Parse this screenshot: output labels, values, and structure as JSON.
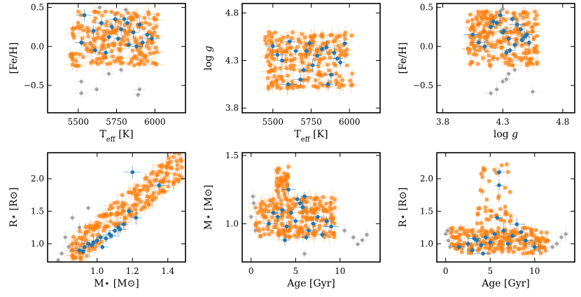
{
  "colors": {
    "orange": "#ff7f0e",
    "blue": "#1f77b4",
    "gray": "#9a9a9a"
  },
  "chart_data": [
    {
      "type": "scatter",
      "xlabel": "Teff [K]",
      "ylabel": "[Fe/H]",
      "xlim": [
        5300,
        6200
      ],
      "ylim": [
        -0.85,
        0.55
      ],
      "xticks": [
        5500,
        5750,
        6000
      ],
      "xtick_labels": [
        "5500",
        "5750",
        "6000"
      ],
      "yticks": [
        -0.5,
        0.0,
        0.5
      ],
      "ytick_labels": [
        "−0.5",
        "0.0",
        "0.5"
      ],
      "series": [
        {
          "name": "background",
          "color": "gray",
          "x": [
            5520,
            5620,
            5700,
            5780,
            5890,
            5520,
            5810,
            5640,
            5900,
            5450
          ],
          "y": [
            -0.6,
            -0.55,
            -0.35,
            -0.3,
            -0.62,
            -0.45,
            0.47,
            0.5,
            -0.55,
            -0.1
          ]
        },
        {
          "name": "sample",
          "color": "orange",
          "count": 220,
          "seed": 11,
          "x_range": [
            5450,
            6020
          ],
          "y_range": [
            -0.25,
            0.45
          ],
          "jitter": [
            25,
            0.04
          ]
        },
        {
          "name": "highlight",
          "color": "blue",
          "x": [
            5520,
            5600,
            5650,
            5700,
            5720,
            5760,
            5800,
            5830,
            5860,
            5900,
            5920,
            5950,
            5540,
            5680,
            5740,
            5780,
            5880,
            5980,
            5610,
            5820
          ],
          "y": [
            0.05,
            0.2,
            0.3,
            0.12,
            0.25,
            0.1,
            0.35,
            0.02,
            0.18,
            0.28,
            0.05,
            0.15,
            0.4,
            -0.08,
            0.35,
            0.22,
            0.0,
            0.1,
            -0.05,
            0.3
          ]
        }
      ]
    },
    {
      "type": "scatter",
      "xlabel": "Teff [K]",
      "ylabel": "log g",
      "xlim": [
        5300,
        6200
      ],
      "ylim": [
        3.75,
        4.9
      ],
      "xticks": [
        5500,
        5750,
        6000
      ],
      "xtick_labels": [
        "5500",
        "5750",
        "6000"
      ],
      "yticks": [
        3.8,
        4.3,
        4.8
      ],
      "ytick_labels": [
        "3.8",
        "4.3",
        "4.8"
      ],
      "series": [
        {
          "name": "sample",
          "color": "orange",
          "count": 220,
          "seed": 23,
          "x_range": [
            5450,
            6020
          ],
          "y_range": [
            4.0,
            4.6
          ],
          "jitter": [
            25,
            0.04
          ]
        },
        {
          "name": "highlight",
          "color": "blue",
          "x": [
            5500,
            5560,
            5610,
            5650,
            5700,
            5740,
            5790,
            5820,
            5860,
            5900,
            5940,
            5970,
            5530,
            5680,
            5760,
            5850,
            5920,
            5600,
            5880,
            5720
          ],
          "y": [
            4.45,
            4.3,
            4.5,
            4.4,
            4.2,
            4.48,
            4.35,
            4.42,
            4.05,
            4.38,
            4.28,
            4.48,
            4.36,
            4.1,
            4.25,
            4.44,
            4.32,
            4.05,
            4.15,
            4.4
          ]
        }
      ]
    },
    {
      "type": "scatter",
      "xlabel": "log g",
      "ylabel": "[Fe/H]",
      "xlim": [
        3.75,
        4.9
      ],
      "ylim": [
        -0.85,
        0.55
      ],
      "xticks": [
        3.8,
        4.3,
        4.8
      ],
      "xtick_labels": [
        "3.8",
        "4.3",
        "4.8"
      ],
      "yticks": [
        -0.5,
        0.0,
        0.5
      ],
      "ytick_labels": [
        "−0.5",
        "0.0",
        "0.5"
      ],
      "series": [
        {
          "name": "background",
          "color": "gray",
          "x": [
            4.2,
            4.25,
            4.3,
            4.35,
            4.4,
            4.3,
            4.15,
            4.55,
            4.33,
            4.28
          ],
          "y": [
            -0.6,
            -0.55,
            -0.45,
            -0.35,
            -0.3,
            0.48,
            0.4,
            -0.58,
            -0.42,
            0.45
          ]
        },
        {
          "name": "sample",
          "color": "orange",
          "count": 220,
          "seed": 37,
          "x_range": [
            4.0,
            4.6
          ],
          "y_range": [
            -0.25,
            0.45
          ],
          "jitter": [
            0.03,
            0.04
          ]
        },
        {
          "name": "highlight",
          "color": "blue",
          "x": [
            4.1,
            4.2,
            4.25,
            4.3,
            4.35,
            4.38,
            4.4,
            4.45,
            4.5,
            4.52,
            4.28,
            4.33,
            4.42,
            4.15,
            4.48,
            4.22,
            4.36,
            4.05,
            4.31,
            4.46
          ],
          "y": [
            0.05,
            0.25,
            0.3,
            0.18,
            0.1,
            0.35,
            0.02,
            0.22,
            0.15,
            0.05,
            0.4,
            -0.08,
            0.28,
            0.0,
            0.12,
            0.32,
            -0.05,
            0.15,
            0.2,
            0.08
          ]
        }
      ]
    },
    {
      "type": "scatter",
      "xlabel": "M⋆ [M⊙]",
      "ylabel": "R⋆ [R⊙]",
      "xlim": [
        0.72,
        1.5
      ],
      "ylim": [
        0.72,
        2.4
      ],
      "xticks": [
        1.0,
        1.2,
        1.4
      ],
      "xtick_labels": [
        "1.0",
        "1.2",
        "1.4"
      ],
      "yticks": [
        1.0,
        1.5,
        2.0
      ],
      "ytick_labels": [
        "1.0",
        "1.5",
        "2.0"
      ],
      "series": [
        {
          "name": "background",
          "color": "gray",
          "x": [
            0.78,
            0.82,
            0.84,
            0.86,
            0.88,
            0.8,
            0.9,
            0.95
          ],
          "y": [
            0.75,
            1.1,
            0.95,
            1.4,
            1.0,
            0.85,
            1.25,
            1.55
          ]
        },
        {
          "name": "sample",
          "color": "orange",
          "count": 220,
          "seed": 53,
          "relation": "mass-radius",
          "x_range": [
            0.85,
            1.48
          ],
          "y_range": [
            0.85,
            2.25
          ],
          "jitter": [
            0.02,
            0.07
          ]
        },
        {
          "name": "highlight",
          "color": "blue",
          "x": [
            0.9,
            0.93,
            0.95,
            0.97,
            1.0,
            1.02,
            1.05,
            1.07,
            1.1,
            1.12,
            1.15,
            1.18,
            1.2,
            1.35,
            1.22,
            0.98,
            1.03,
            1.08,
            1.13,
            0.92
          ],
          "y": [
            0.9,
            0.95,
            1.0,
            0.98,
            1.05,
            1.1,
            1.08,
            1.15,
            1.2,
            1.25,
            1.3,
            1.5,
            2.1,
            1.9,
            1.4,
            1.02,
            0.95,
            1.12,
            1.22,
            0.88
          ]
        }
      ]
    },
    {
      "type": "scatter",
      "xlabel": "Age [Gyr]",
      "ylabel": "M⋆ [M⊙]",
      "xlim": [
        -1,
        14.5
      ],
      "ylim": [
        0.72,
        1.52
      ],
      "xticks": [
        0,
        5,
        10
      ],
      "xtick_labels": [
        "0",
        "5",
        "10"
      ],
      "yticks": [
        1.0,
        1.5
      ],
      "ytick_labels": [
        "1.0",
        "1.5"
      ],
      "series": [
        {
          "name": "background",
          "color": "gray",
          "x": [
            0.0,
            0.2,
            0.5,
            11.5,
            12.0,
            12.5,
            13.0,
            6.0,
            0.3,
            10.5
          ],
          "y": [
            1.05,
            1.2,
            0.95,
            0.9,
            0.85,
            0.88,
            0.92,
            0.78,
            1.15,
            0.95
          ]
        },
        {
          "name": "sample",
          "color": "orange",
          "count": 220,
          "seed": 71,
          "x_range": [
            0.5,
            9.5
          ],
          "y_range": [
            0.9,
            1.2
          ],
          "jitter": [
            0.3,
            0.03
          ]
        },
        {
          "name": "cluster",
          "color": "orange",
          "count": 40,
          "seed": 73,
          "x_range": [
            2.8,
            4.2
          ],
          "y_range": [
            1.2,
            1.42
          ],
          "jitter": [
            0.2,
            0.02
          ]
        },
        {
          "name": "highlight",
          "color": "blue",
          "x": [
            2.0,
            3.0,
            3.5,
            4.0,
            4.5,
            5.0,
            5.5,
            6.0,
            6.5,
            7.0,
            7.5,
            8.0,
            9.0,
            4.2,
            5.8,
            3.8,
            6.2,
            2.5,
            8.5,
            5.2
          ],
          "y": [
            1.0,
            1.05,
            1.1,
            0.98,
            1.08,
            1.02,
            1.15,
            1.2,
            0.95,
            1.0,
            1.05,
            0.92,
            0.98,
            1.25,
            1.12,
            0.88,
            0.9,
            1.08,
            1.02,
            1.18
          ]
        }
      ]
    },
    {
      "type": "scatter",
      "xlabel": "Age [Gyr]",
      "ylabel": "R⋆ [R⊙]",
      "xlim": [
        -1,
        14.5
      ],
      "ylim": [
        0.72,
        2.4
      ],
      "xticks": [
        0,
        5,
        10
      ],
      "xtick_labels": [
        "0",
        "5",
        "10"
      ],
      "yticks": [
        1.0,
        1.5,
        2.0
      ],
      "ytick_labels": [
        "1.0",
        "1.5",
        "2.0"
      ],
      "series": [
        {
          "name": "background",
          "color": "gray",
          "x": [
            0.0,
            0.3,
            0.5,
            11.5,
            12.0,
            12.5,
            13.0,
            0.2,
            10.5,
            13.5
          ],
          "y": [
            1.15,
            1.05,
            0.95,
            1.05,
            0.95,
            1.0,
            1.1,
            1.2,
            0.9,
            1.15
          ]
        },
        {
          "name": "sample",
          "color": "orange",
          "count": 220,
          "seed": 89,
          "x_range": [
            0.5,
            11.5
          ],
          "y_range": [
            0.85,
            1.25
          ],
          "jitter": [
            0.3,
            0.04
          ]
        },
        {
          "name": "cluster",
          "color": "orange",
          "count": 45,
          "seed": 97,
          "x_range": [
            3.5,
            7.5
          ],
          "y_range": [
            1.3,
            2.3
          ],
          "jitter": [
            0.2,
            0.05
          ]
        },
        {
          "name": "highlight",
          "color": "blue",
          "x": [
            1.5,
            2.5,
            3.0,
            3.5,
            4.0,
            4.5,
            5.0,
            5.5,
            6.0,
            6.5,
            7.0,
            7.5,
            8.0,
            9.0,
            10.0,
            6.0,
            5.8,
            4.2,
            3.2,
            8.5
          ],
          "y": [
            0.95,
            1.0,
            0.9,
            1.05,
            0.98,
            1.1,
            1.02,
            1.15,
            2.1,
            1.2,
            1.0,
            1.12,
            1.3,
            1.05,
            0.95,
            1.9,
            1.4,
            0.85,
            1.08,
            1.18
          ]
        }
      ]
    }
  ]
}
